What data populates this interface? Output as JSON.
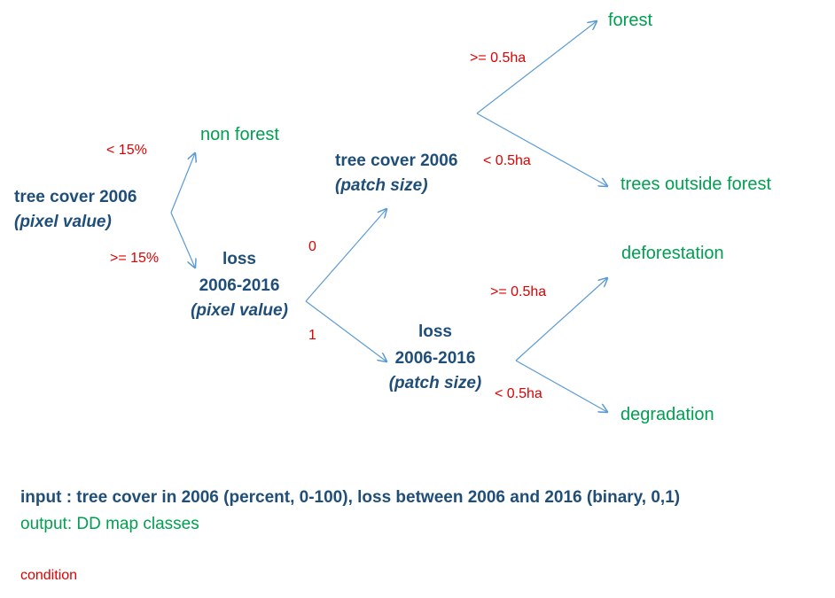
{
  "nodes": {
    "root": {
      "line1": "tree cover 2006",
      "line2": "(pixel value)"
    },
    "loss_pixel": {
      "line1": "loss",
      "line2": "2006-2016",
      "line3": "(pixel value)"
    },
    "tree_patch": {
      "line1": "tree cover 2006",
      "line2": "(patch size)"
    },
    "loss_patch": {
      "line1": "loss",
      "line2": "2006-2016",
      "line3": "(patch size)"
    }
  },
  "leaves": {
    "non_forest": "non forest",
    "forest": "forest",
    "trees_outside_forest": "trees outside forest",
    "deforestation": "deforestation",
    "degradation": "degradation"
  },
  "conditions": {
    "lt_15": "< 15%",
    "ge_15": ">= 15%",
    "zero": "0",
    "one": "1",
    "ge_05_top": ">= 0.5ha",
    "lt_05_top": "< 0.5ha",
    "ge_05_bottom": ">= 0.5ha",
    "lt_05_bottom": "< 0.5ha"
  },
  "info": {
    "input": "input : tree cover in 2006 (percent, 0-100), loss between 2006 and 2016 (binary,  0,1)",
    "output": "output: DD map classes"
  },
  "legend": {
    "condition": "condition"
  },
  "colors": {
    "node": "#1f4e79",
    "leaf": "#00a050",
    "condition": "#e00000",
    "edge": "#5b9bd5"
  }
}
